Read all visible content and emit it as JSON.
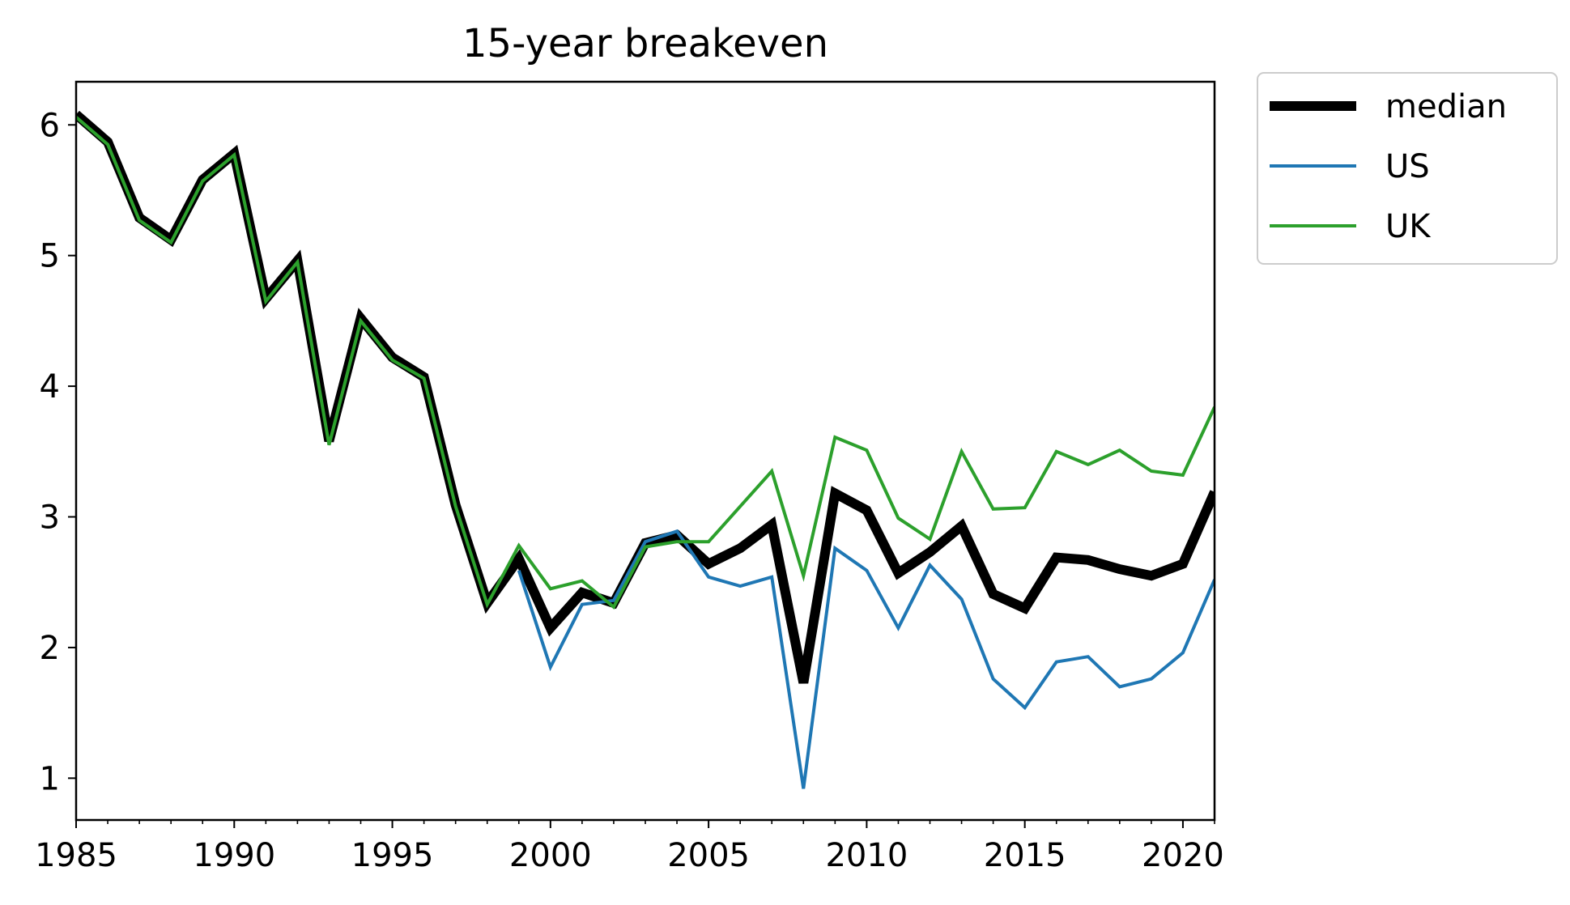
{
  "chart_data": {
    "type": "line",
    "title": "15-year breakeven",
    "xlabel": "",
    "ylabel": "",
    "xlim": [
      1985,
      2021
    ],
    "ylim": [
      0.68,
      6.33
    ],
    "xticks": [
      1985,
      1990,
      1995,
      2000,
      2005,
      2010,
      2015,
      2020
    ],
    "yticks": [
      1,
      2,
      3,
      4,
      5,
      6
    ],
    "legend_position": "outside-right-top",
    "grid": false,
    "x": [
      1985,
      1986,
      1987,
      1988,
      1989,
      1990,
      1991,
      1992,
      1993,
      1994,
      1995,
      1996,
      1997,
      1998,
      1999,
      2000,
      2001,
      2002,
      2003,
      2004,
      2005,
      2006,
      2007,
      2008,
      2009,
      2010,
      2011,
      2012,
      2013,
      2014,
      2015,
      2016,
      2017,
      2018,
      2019,
      2020,
      2021
    ],
    "series": [
      {
        "name": "median",
        "color": "#000000",
        "values": [
          6.08,
          5.87,
          5.29,
          5.12,
          5.58,
          5.78,
          4.67,
          4.96,
          3.58,
          4.52,
          4.22,
          4.07,
          3.09,
          2.34,
          2.68,
          2.15,
          2.42,
          2.34,
          2.8,
          2.86,
          2.64,
          2.76,
          2.94,
          1.73,
          3.18,
          3.05,
          2.57,
          2.73,
          2.93,
          2.41,
          2.3,
          2.69,
          2.67,
          2.6,
          2.55,
          2.64,
          3.19
        ]
      },
      {
        "name": "US",
        "color": "#1f77b4",
        "values": [
          null,
          null,
          null,
          null,
          null,
          null,
          null,
          null,
          null,
          null,
          null,
          null,
          null,
          null,
          2.59,
          1.85,
          2.33,
          2.36,
          2.81,
          2.89,
          2.54,
          2.47,
          2.54,
          0.92,
          2.76,
          2.59,
          2.15,
          2.63,
          2.37,
          1.76,
          1.54,
          1.89,
          1.93,
          1.7,
          1.76,
          1.96,
          2.52
        ]
      },
      {
        "name": "UK",
        "color": "#2ca02c",
        "values": [
          6.06,
          5.85,
          5.27,
          5.1,
          5.57,
          5.77,
          4.65,
          4.95,
          3.55,
          4.5,
          4.2,
          4.06,
          3.08,
          2.33,
          2.78,
          2.45,
          2.51,
          2.31,
          2.77,
          2.81,
          2.81,
          3.08,
          3.35,
          2.55,
          3.61,
          3.51,
          2.99,
          2.83,
          3.5,
          3.06,
          3.07,
          3.5,
          3.4,
          3.51,
          3.35,
          3.32,
          3.84
        ]
      }
    ]
  }
}
